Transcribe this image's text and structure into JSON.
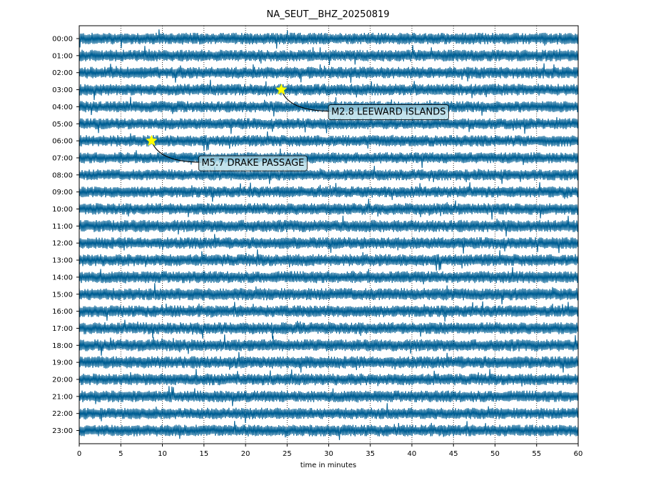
{
  "chart_data": {
    "type": "line",
    "title": "NA_SEUT__BHZ_20250819",
    "xlabel": "time in minutes",
    "ylabel": "",
    "xlim": [
      0,
      60
    ],
    "x_ticks": [
      0,
      5,
      10,
      15,
      20,
      25,
      30,
      35,
      40,
      45,
      50,
      55,
      60
    ],
    "grid": "vertical dotted",
    "trace_color": "#005f94",
    "star_color": "#ffff00",
    "annotation_box_color": "#add8e6",
    "rows": [
      {
        "label": "00:00",
        "level": 0.55
      },
      {
        "label": "01:00",
        "level": 0.55
      },
      {
        "label": "02:00",
        "level": 0.55
      },
      {
        "label": "03:00",
        "level": 0.55
      },
      {
        "label": "04:00",
        "level": 0.5
      },
      {
        "label": "05:00",
        "level": 0.45
      },
      {
        "label": "06:00",
        "level": 0.5
      },
      {
        "label": "07:00",
        "level": 0.45
      },
      {
        "label": "08:00",
        "level": 0.45
      },
      {
        "label": "09:00",
        "level": 0.45
      },
      {
        "label": "10:00",
        "level": 0.55
      },
      {
        "label": "11:00",
        "level": 0.65
      },
      {
        "label": "12:00",
        "level": 0.55
      },
      {
        "label": "13:00",
        "level": 0.6
      },
      {
        "label": "14:00",
        "level": 0.6
      },
      {
        "label": "15:00",
        "level": 0.65
      },
      {
        "label": "16:00",
        "level": 0.55
      },
      {
        "label": "17:00",
        "level": 0.6
      },
      {
        "label": "18:00",
        "level": 0.6
      },
      {
        "label": "19:00",
        "level": 0.65
      },
      {
        "label": "20:00",
        "level": 0.55
      },
      {
        "label": "21:00",
        "level": 0.55
      },
      {
        "label": "22:00",
        "level": 0.5
      },
      {
        "label": "23:00",
        "level": 0.55
      }
    ],
    "events": [
      {
        "label": "M2.8 LEEWARD ISLANDS",
        "hour": "03:00",
        "minute": 24.3
      },
      {
        "label": "M5.7 DRAKE PASSAGE",
        "hour": "06:00",
        "minute": 8.7
      }
    ]
  }
}
